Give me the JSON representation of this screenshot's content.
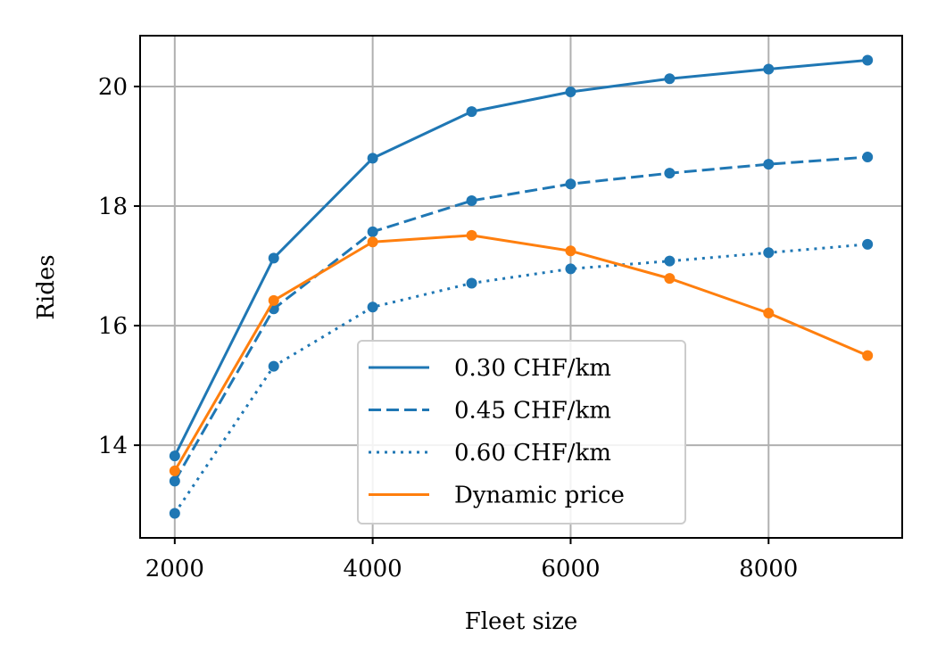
{
  "chart_data": {
    "type": "line",
    "title": "",
    "xlabel": "Fleet size",
    "ylabel": "Rides",
    "xlim": [
      1650,
      9350
    ],
    "ylim": [
      12.45,
      20.85
    ],
    "xticks": [
      2000,
      4000,
      6000,
      8000
    ],
    "yticks": [
      14,
      16,
      18,
      20
    ],
    "grid": true,
    "legend_position": "lower-center",
    "x": [
      2000,
      3000,
      4000,
      5000,
      6000,
      7000,
      8000,
      9000
    ],
    "series": [
      {
        "name": "0.30 CHF/km",
        "color": "#1f77b4",
        "style": "solid",
        "values": [
          13.82,
          17.13,
          18.8,
          19.58,
          19.91,
          20.13,
          20.29,
          20.44
        ]
      },
      {
        "name": "0.45 CHF/km",
        "color": "#1f77b4",
        "style": "dashed",
        "values": [
          13.4,
          16.28,
          17.57,
          18.09,
          18.37,
          18.55,
          18.7,
          18.82
        ]
      },
      {
        "name": "0.60 CHF/km",
        "color": "#1f77b4",
        "style": "dotted",
        "values": [
          12.86,
          15.32,
          16.31,
          16.71,
          16.95,
          17.08,
          17.22,
          17.36
        ]
      },
      {
        "name": "Dynamic price",
        "color": "#ff7f0e",
        "style": "solid",
        "values": [
          13.57,
          16.42,
          17.4,
          17.51,
          17.25,
          16.79,
          16.21,
          15.5
        ]
      }
    ]
  }
}
